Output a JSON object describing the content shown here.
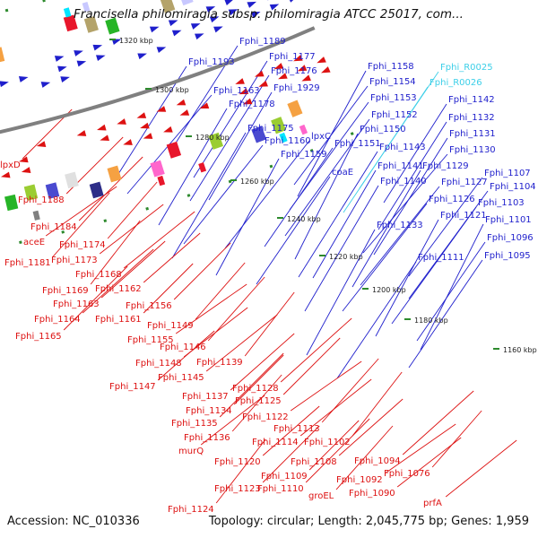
{
  "title": "Francisella philomiragia subsp. philomiragia ATCC 25017, com...",
  "footer": {
    "accession": "Accession: NC_010336",
    "summary": "Topology: circular; Length: 2,045,775 bp; Genes: 1,959"
  },
  "colors": {
    "forward_strand": "#1f1fcc",
    "reverse_strand": "#dd1111",
    "rna_label": "#3ccfe8",
    "backbone": "#808080",
    "tick": "#2d8a2d"
  },
  "kbp_ticks": [
    "1320 kbp",
    "1300 kbp",
    "1280 kbp",
    "1260 kbp",
    "1240 kbp",
    "1220 kbp",
    "1200 kbp",
    "1180 kbp",
    "1160 kbp"
  ],
  "upper_labels": [
    "Fphi_1189",
    "Fphi_1193",
    "Fphi_1177",
    "Fphi_1176",
    "Fphi_1163",
    "Fphi_1929",
    "Fphi_1178",
    "Fphi_1175",
    "Fphi_1160",
    "lpxC",
    "Fphi_1159",
    "Fphi_1158",
    "Fphi_1154",
    "Fphi_1153",
    "Fphi_1152",
    "Fphi_1150",
    "Fphi_1151",
    "coaE",
    "Fphi_R0025",
    "Fphi_R0026",
    "Fphi_1142",
    "Fphi_1132",
    "Fphi_1131",
    "Fphi_1143",
    "Fphi_1130",
    "Fphi_1141",
    "Fphi_1129",
    "Fphi_1140",
    "Fphi_1127",
    "Fphi_1126",
    "Fphi_1121",
    "Fphi_1133",
    "Fphi_1107",
    "Fphi_1104",
    "Fphi_1103",
    "Fphi_1101",
    "Fphi_1096",
    "Fphi_1095",
    "Fphi_1111"
  ],
  "lower_labels": [
    "lpxD",
    "Fphi_1188",
    "Fphi_1184",
    "aceE",
    "Fphi_1174",
    "Fphi_1181",
    "Fphi_1173",
    "Fphi_1168",
    "Fphi_1169",
    "Fphi_1162",
    "Fphi_1163",
    "Fphi_1164",
    "Fphi_1161",
    "Fphi_1156",
    "Fphi_1165",
    "Fphi_1155",
    "Fphi_1149",
    "Fphi_1146",
    "Fphi_1148",
    "Fphi_1145",
    "Fphi_1139",
    "Fphi_1147",
    "Fphi_1137",
    "Fphi_1128",
    "Fphi_1134",
    "Fphi_1125",
    "Fphi_1135",
    "Fphi_1122",
    "Fphi_1136",
    "Fphi_1113",
    "murQ",
    "Fphi_1114",
    "Fphi_1102",
    "Fphi_1120",
    "Fphi_1108",
    "Fphi_1094",
    "Fphi_1109",
    "Fphi_1123",
    "Fphi_1110",
    "Fphi_1092",
    "Fphi_1076",
    "groEL",
    "Fphi_1090",
    "prfA",
    "Fphi_1124"
  ]
}
